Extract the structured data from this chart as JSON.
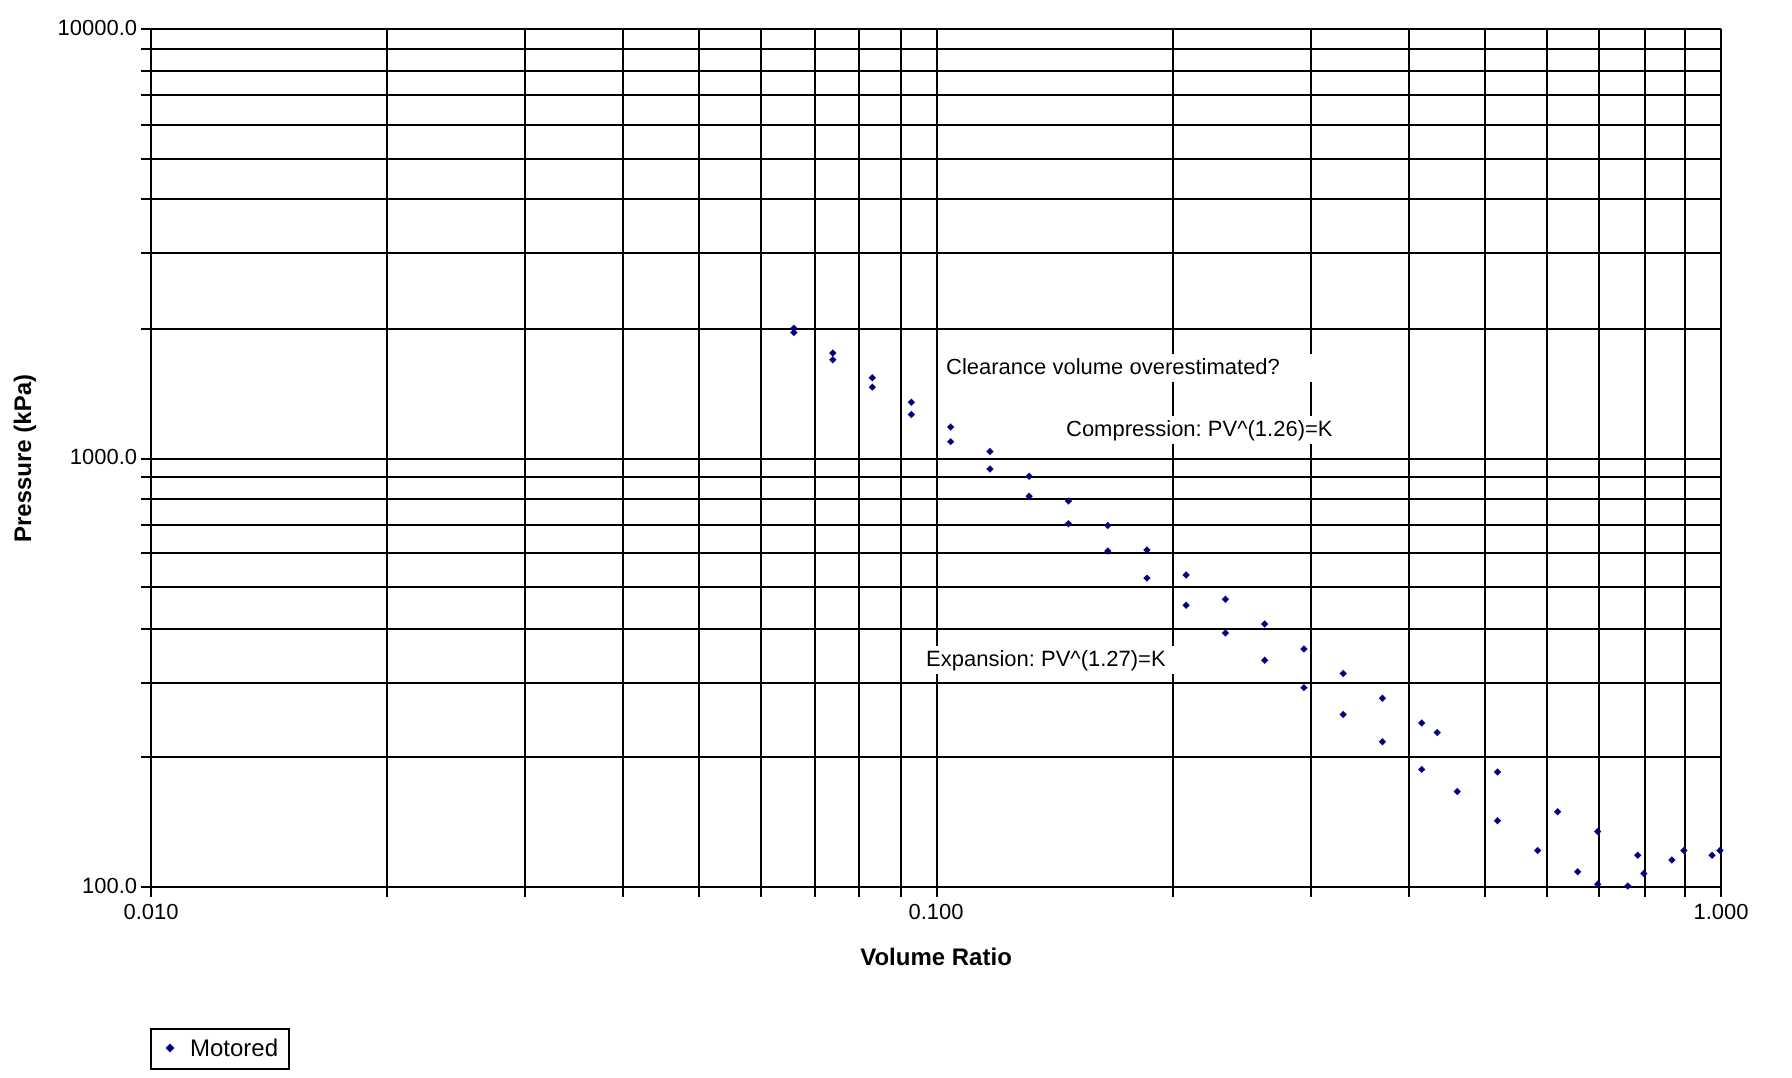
{
  "chart_data": {
    "type": "scatter",
    "xlabel": "Volume Ratio",
    "ylabel": "Pressure (kPa)",
    "log": "xy",
    "grid": true,
    "legend": "bottom",
    "marker": "diamond",
    "xlim": [
      0.01,
      1.0
    ],
    "ylim": [
      100,
      10000
    ],
    "xticks": [
      {
        "value": 0.01,
        "label": "0.010"
      },
      {
        "value": 0.02,
        "label": null
      },
      {
        "value": 0.03,
        "label": null
      },
      {
        "value": 0.04,
        "label": null
      },
      {
        "value": 0.05,
        "label": null
      },
      {
        "value": 0.06,
        "label": null
      },
      {
        "value": 0.07,
        "label": null
      },
      {
        "value": 0.08,
        "label": null
      },
      {
        "value": 0.09,
        "label": null
      },
      {
        "value": 0.1,
        "label": "0.100"
      },
      {
        "value": 0.2,
        "label": null
      },
      {
        "value": 0.3,
        "label": null
      },
      {
        "value": 0.4,
        "label": null
      },
      {
        "value": 0.5,
        "label": null
      },
      {
        "value": 0.6,
        "label": null
      },
      {
        "value": 0.7,
        "label": null
      },
      {
        "value": 0.8,
        "label": null
      },
      {
        "value": 0.9,
        "label": null
      },
      {
        "value": 1.0,
        "label": "1.000"
      }
    ],
    "yticks": [
      {
        "value": 100,
        "label": "100.0"
      },
      {
        "value": 200,
        "label": null
      },
      {
        "value": 300,
        "label": null
      },
      {
        "value": 400,
        "label": null
      },
      {
        "value": 500,
        "label": null
      },
      {
        "value": 600,
        "label": null
      },
      {
        "value": 700,
        "label": null
      },
      {
        "value": 800,
        "label": null
      },
      {
        "value": 900,
        "label": null
      },
      {
        "value": 1000,
        "label": "1000.0"
      },
      {
        "value": 2000,
        "label": null
      },
      {
        "value": 3000,
        "label": null
      },
      {
        "value": 4000,
        "label": null
      },
      {
        "value": 5000,
        "label": null
      },
      {
        "value": 6000,
        "label": null
      },
      {
        "value": 7000,
        "label": null
      },
      {
        "value": 8000,
        "label": null
      },
      {
        "value": 9000,
        "label": null
      },
      {
        "value": 10000,
        "label": "10000.0"
      }
    ],
    "annotations": [
      "Clearance volume overestimated?",
      "Compression: PV^(1.26)=K",
      "Expansion: PV^(1.27)=K"
    ],
    "series": [
      {
        "name": "Motored",
        "color": "#000080",
        "x": [
          0.0661,
          0.0741,
          0.0832,
          0.0933,
          0.1047,
          0.1175,
          0.1318,
          0.1479,
          0.166,
          0.1862,
          0.2089,
          0.2344,
          0.263,
          0.2951,
          0.3311,
          0.3715,
          0.4169,
          0.4627,
          0.5207,
          0.5857,
          0.6587,
          0.6985,
          0.763,
          0.7998,
          0.8684,
          0.977,
          1.0,
          0.982,
          0.8995,
          0.7856,
          0.6985,
          0.6211,
          0.5207,
          0.4363,
          0.4169,
          0.3715,
          0.3311,
          0.2951,
          0.263,
          0.2344,
          0.2089,
          0.1862,
          0.166,
          0.1479,
          0.1318,
          0.1175,
          0.1047,
          0.0933,
          0.0832,
          0.0741,
          0.0661
        ],
        "values": [
          1951,
          1686,
          1455,
          1257,
          1086,
          938,
          810,
          699,
          604,
          522,
          451,
          389,
          336,
          290,
          251,
          217,
          187,
          166,
          142,
          121,
          108,
          101,
          100,
          107,
          115,
          118,
          121,
          null,
          121,
          118,
          134,
          149,
          184.5,
          228,
          240,
          274,
          313,
          357,
          408,
          466,
          531,
          607,
          692,
          790,
          902,
          1030,
          1175,
          1342,
          1531,
          1748,
          1995
        ]
      }
    ]
  }
}
